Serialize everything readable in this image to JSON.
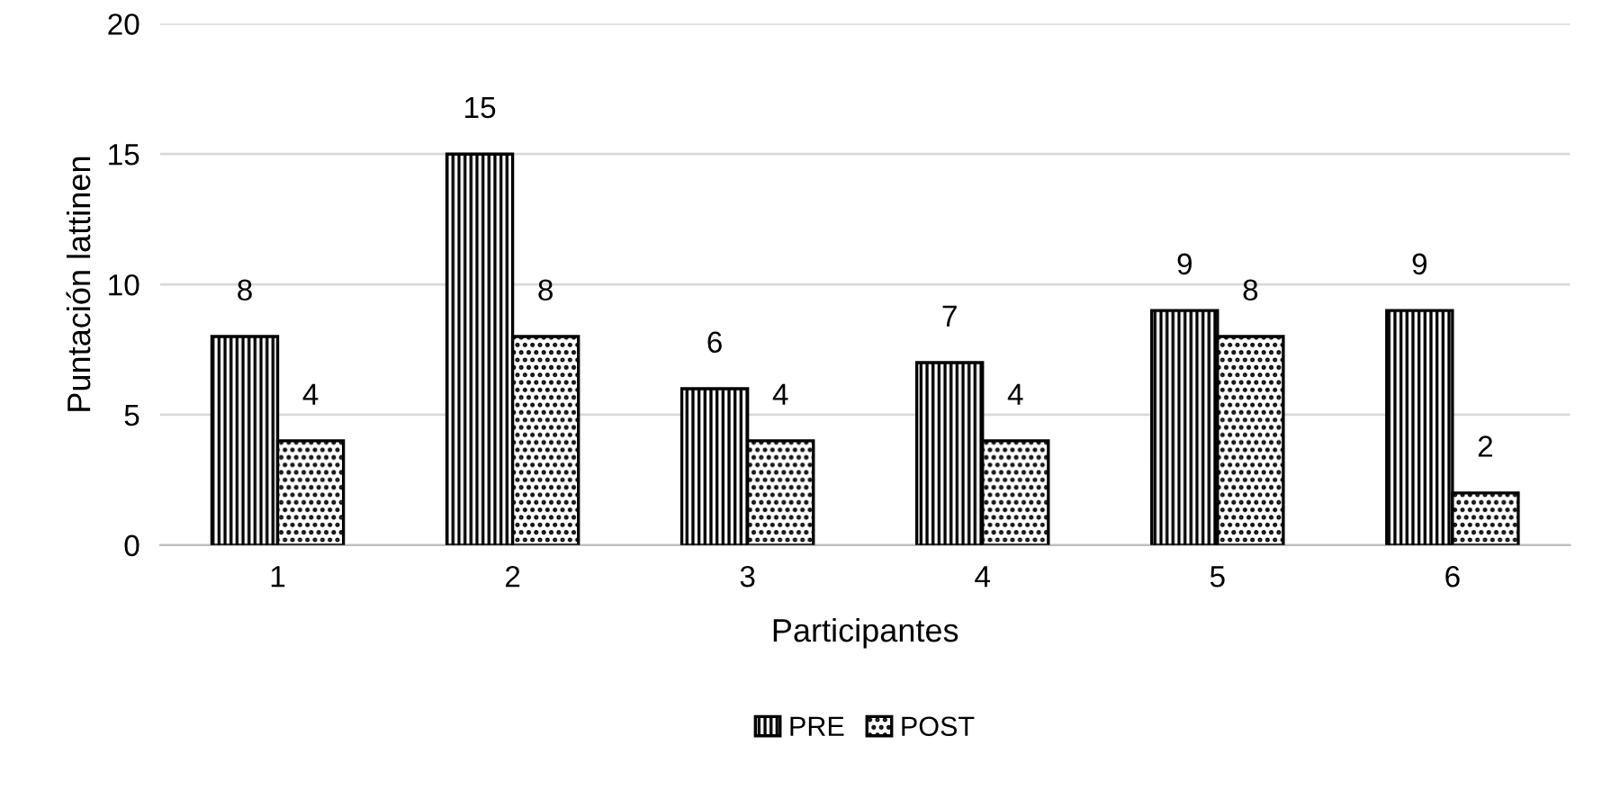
{
  "chart_data": {
    "type": "bar",
    "xlabel": "Participantes",
    "ylabel": "Puntación lattinen",
    "categories": [
      "1",
      "2",
      "3",
      "4",
      "5",
      "6"
    ],
    "series": [
      {
        "name": "PRE",
        "color": "#000000",
        "values": [
          8,
          15,
          6,
          7,
          9,
          9
        ]
      },
      {
        "name": "POST",
        "color": "#000000",
        "values": [
          4,
          8,
          4,
          4,
          8,
          2
        ]
      }
    ],
    "ylim": [
      0,
      20
    ],
    "yticks": [
      0,
      5,
      10,
      15,
      20
    ],
    "grid": "y",
    "legend": "bottom",
    "data_labels": true
  }
}
